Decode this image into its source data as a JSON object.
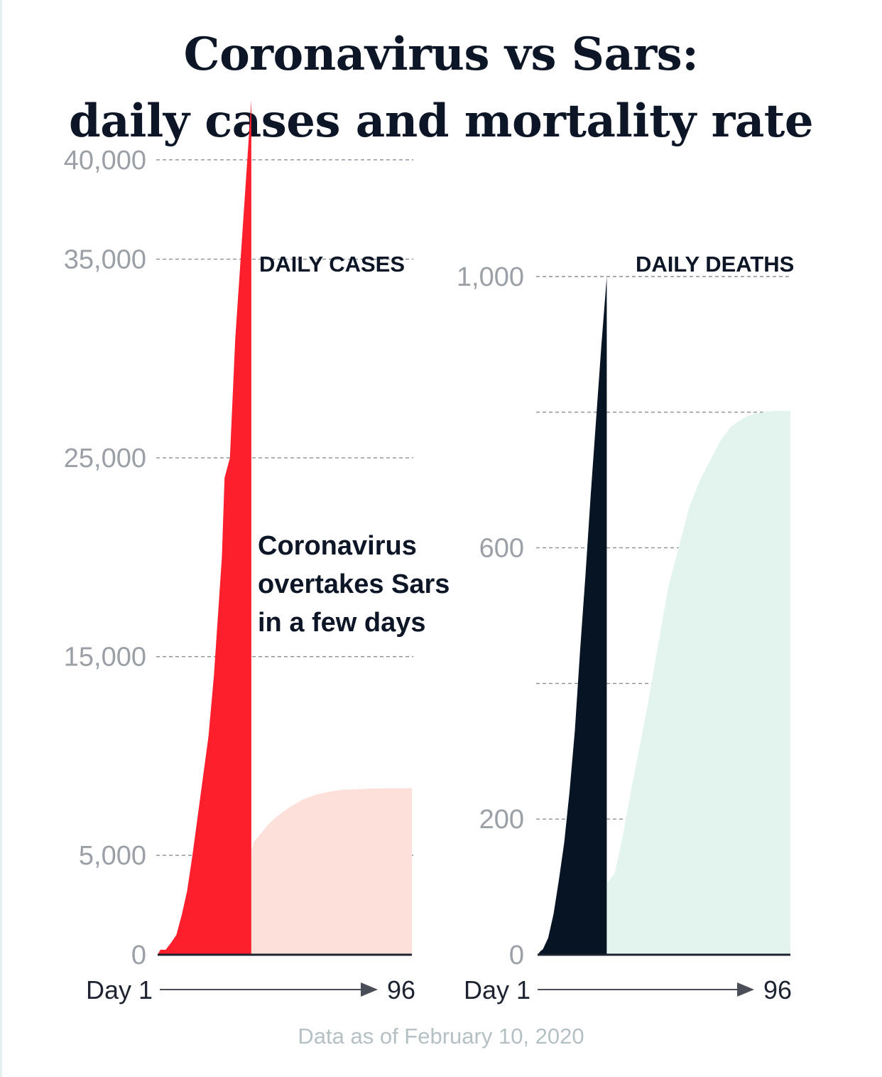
{
  "title_line1": "Coronavirus vs Sars:",
  "title_line2": "daily cases and mortality rate",
  "footer": "Data as of February 10, 2020",
  "colors": {
    "coronavirus_cases": "#fe1f2c",
    "sars_cases": "#fde0d9",
    "coronavirus_deaths": "#071424",
    "sars_deaths": "#e3f4ef",
    "grid": "#8a8f96",
    "tick": "#9aa0a6"
  },
  "chart_data": [
    {
      "type": "area",
      "title": "DAILY CASES",
      "annotation": [
        "Coronavirus",
        "overtakes Sars",
        "in a few days"
      ],
      "x_start_label": "Day 1",
      "x_end_label": "96",
      "xlim": [
        1,
        96
      ],
      "ylim": [
        0,
        45000
      ],
      "y_ticks": [
        0,
        5000,
        15000,
        25000,
        35000,
        40000
      ],
      "y_tick_labels": [
        "0",
        "5,000",
        "15,000",
        "25,000",
        "35,000",
        "40,000"
      ],
      "grid": true,
      "series": [
        {
          "role": "coronavirus",
          "x": [
            1,
            2,
            4,
            6,
            8,
            10,
            12,
            14,
            16,
            18,
            20,
            21,
            22,
            23,
            24,
            25,
            26,
            27,
            28,
            29,
            30,
            31,
            32,
            33,
            35,
            36
          ],
          "y": [
            0,
            250,
            250,
            600,
            1000,
            2000,
            3200,
            5000,
            7000,
            9000,
            11000,
            12500,
            14000,
            16000,
            18000,
            20000,
            24000,
            24500,
            25000,
            28000,
            31000,
            33000,
            35000,
            37000,
            41000,
            43000
          ]
        },
        {
          "role": "sars",
          "x": [
            36,
            37,
            39,
            42,
            45,
            50,
            55,
            60,
            65,
            70,
            75,
            80,
            85,
            90,
            96
          ],
          "y": [
            5200,
            5700,
            6000,
            6500,
            6900,
            7400,
            7800,
            8050,
            8200,
            8300,
            8320,
            8360,
            8370,
            8380,
            8380
          ]
        }
      ]
    },
    {
      "type": "area",
      "title": "DAILY DEATHS",
      "x_start_label": "Day 1",
      "x_end_label": "96",
      "xlim": [
        1,
        96
      ],
      "ylim": [
        0,
        1000
      ],
      "y_ticks": [
        0,
        200,
        400,
        600,
        800,
        1000
      ],
      "y_tick_labels": [
        "0",
        "200",
        "",
        "600",
        "",
        "1,000"
      ],
      "grid": true,
      "series": [
        {
          "role": "coronavirus",
          "x": [
            1,
            2,
            3,
            5,
            7,
            9,
            11,
            13,
            15,
            17,
            19,
            21,
            23,
            25,
            27
          ],
          "y": [
            0,
            5,
            8,
            25,
            60,
            110,
            165,
            240,
            330,
            450,
            560,
            680,
            790,
            900,
            1000
          ]
        },
        {
          "role": "sars",
          "x": [
            27,
            30,
            33,
            36,
            39,
            42,
            46,
            50,
            54,
            58,
            62,
            66,
            70,
            74,
            78,
            80,
            83,
            86,
            90,
            96
          ],
          "y": [
            105,
            120,
            175,
            240,
            300,
            360,
            450,
            540,
            600,
            660,
            700,
            730,
            760,
            780,
            790,
            795,
            798,
            800,
            802,
            802
          ]
        }
      ]
    }
  ]
}
